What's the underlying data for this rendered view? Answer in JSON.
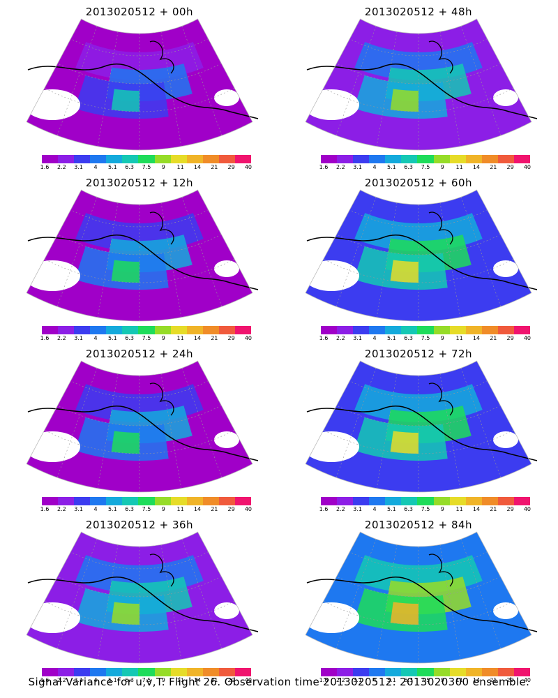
{
  "panels": [
    {
      "title": "2013020512 + 00h",
      "lead": 0
    },
    {
      "title": "2013020512 + 48h",
      "lead": 48
    },
    {
      "title": "2013020512 + 12h",
      "lead": 12
    },
    {
      "title": "2013020512 + 60h",
      "lead": 60
    },
    {
      "title": "2013020512 + 24h",
      "lead": 24
    },
    {
      "title": "2013020512 + 72h",
      "lead": 72
    },
    {
      "title": "2013020512 + 36h",
      "lead": 36
    },
    {
      "title": "2013020512 + 84h",
      "lead": 84
    }
  ],
  "colorbar": {
    "labels": [
      "1.6",
      "2.2",
      "3.1",
      "4",
      "5.1",
      "6.3",
      "7.5",
      "9",
      "11",
      "14",
      "21",
      "29",
      "40"
    ],
    "colors": [
      "#a000c8",
      "#8c1ee6",
      "#3c3cf0",
      "#1e78f0",
      "#14aadc",
      "#14c8b4",
      "#1edc5a",
      "#96dc28",
      "#e6dc28",
      "#f0b428",
      "#f08c28",
      "#f05a3c",
      "#f0146e"
    ]
  },
  "footer": "Signal Variance for u,v,T. Flight 26. Observation time 2013020512. 2013020300 ensemble."
}
